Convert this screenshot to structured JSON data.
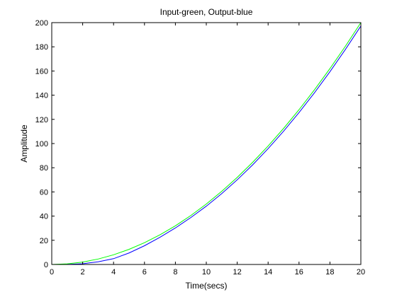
{
  "chart_data": {
    "type": "line",
    "title": "Input-green, Output-blue",
    "xlabel": "Time(secs)",
    "ylabel": "Amplitude",
    "xlim": [
      0,
      20
    ],
    "ylim": [
      0,
      200
    ],
    "x_ticks": [
      0,
      2,
      4,
      6,
      8,
      10,
      12,
      14,
      16,
      18,
      20
    ],
    "y_ticks": [
      0,
      20,
      40,
      60,
      80,
      100,
      120,
      140,
      160,
      180,
      200
    ],
    "grid": false,
    "legend": "none",
    "series": [
      {
        "color": "#00ff00",
        "x": [
          0,
          1,
          2,
          3,
          4,
          5,
          6,
          7,
          8,
          9,
          10,
          11,
          12,
          13,
          14,
          15,
          16,
          17,
          18,
          19,
          20
        ],
        "y": [
          0,
          0.5,
          2,
          4.5,
          8,
          12.5,
          18,
          24.5,
          32,
          40.5,
          50,
          60.5,
          72,
          84.5,
          98,
          112.5,
          128,
          144.5,
          162,
          180.5,
          200
        ]
      },
      {
        "color": "#0000ff",
        "x": [
          0,
          1,
          2,
          3,
          4,
          5,
          6,
          7,
          8,
          9,
          10,
          11,
          12,
          13,
          14,
          15,
          16,
          17,
          18,
          19,
          20
        ],
        "y": [
          0,
          0.1,
          0.6,
          2.2,
          4.8,
          9.5,
          15.5,
          22.5,
          30.2,
          38.8,
          48.2,
          58.6,
          70,
          82.4,
          95.8,
          110.2,
          125.6,
          142,
          159.4,
          177.8,
          197.2
        ]
      }
    ]
  }
}
